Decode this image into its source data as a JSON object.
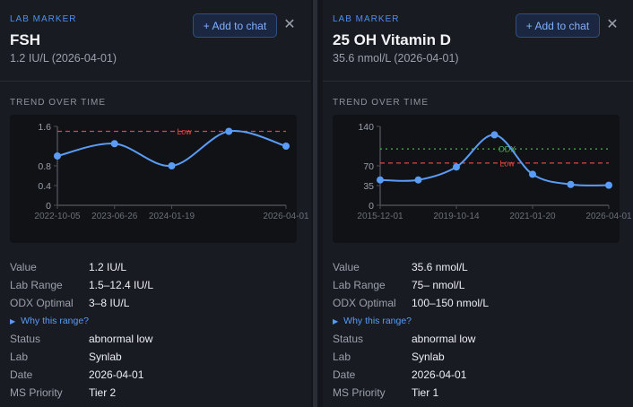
{
  "panels": [
    {
      "kicker": "LAB MARKER",
      "title": "FSH",
      "subtitle": "1.2 IU/L (2026-04-01)",
      "add_label": "+ Add to chat",
      "close_icon": "close-icon",
      "trend_label": "TREND OVER TIME",
      "why_label": "Why this range?",
      "rows": [
        {
          "label": "Value",
          "value": "1.2 IU/L"
        },
        {
          "label": "Lab Range",
          "value": "1.5–12.4 IU/L"
        },
        {
          "label": "ODX Optimal",
          "value": "3–8 IU/L"
        },
        {
          "label": "Status",
          "value": "abnormal low"
        },
        {
          "label": "Lab",
          "value": "Synlab"
        },
        {
          "label": "Date",
          "value": "2026-04-01"
        },
        {
          "label": "MS Priority",
          "value": "Tier 2"
        }
      ]
    },
    {
      "kicker": "LAB MARKER",
      "title": "25 OH Vitamin D",
      "subtitle": "35.6 nmol/L (2026-04-01)",
      "add_label": "+ Add to chat",
      "close_icon": "close-icon",
      "trend_label": "TREND OVER TIME",
      "why_label": "Why this range?",
      "rows": [
        {
          "label": "Value",
          "value": "35.6 nmol/L"
        },
        {
          "label": "Lab Range",
          "value": "75– nmol/L"
        },
        {
          "label": "ODX Optimal",
          "value": "100–150 nmol/L"
        },
        {
          "label": "Status",
          "value": "abnormal low"
        },
        {
          "label": "Lab",
          "value": "Synlab"
        },
        {
          "label": "Date",
          "value": "2026-04-01"
        },
        {
          "label": "MS Priority",
          "value": "Tier 1"
        }
      ]
    }
  ],
  "chart_data": [
    {
      "type": "line",
      "ylim": [
        0,
        1.6
      ],
      "yticks": [
        "0",
        "0.4",
        "0.8",
        "1.6"
      ],
      "ytick_values": [
        0,
        0.4,
        0.8,
        1.6
      ],
      "xtick_labels": [
        {
          "index": 0,
          "label": "2022-10-05"
        },
        {
          "index": 1,
          "label": "2023-06-26"
        },
        {
          "index": 2,
          "label": "2024-01-19"
        },
        {
          "index": 4,
          "label": "2026-04-01"
        }
      ],
      "values": [
        1.0,
        1.25,
        0.8,
        1.5,
        1.2
      ],
      "reference_lines": [
        {
          "label": "Low",
          "value": 1.5,
          "color": "#e0443c",
          "style": "dashed"
        }
      ],
      "line_color": "#5b9cf6"
    },
    {
      "type": "line",
      "ylim": [
        0,
        140
      ],
      "yticks": [
        "0",
        "35",
        "70",
        "140"
      ],
      "ytick_values": [
        0,
        35,
        70,
        140
      ],
      "xtick_labels": [
        {
          "index": 0,
          "label": "2015-12-01"
        },
        {
          "index": 2,
          "label": "2019-10-14"
        },
        {
          "index": 4,
          "label": "2021-01-20"
        },
        {
          "index": 6,
          "label": "2026-04-01"
        }
      ],
      "values": [
        45,
        45,
        68,
        125,
        55,
        37,
        35.6
      ],
      "reference_lines": [
        {
          "label": "ODX",
          "value": 100,
          "color": "#4caf50",
          "style": "dotted"
        },
        {
          "label": "Low",
          "value": 75,
          "color": "#e0443c",
          "style": "dashed"
        }
      ],
      "line_color": "#5b9cf6"
    }
  ]
}
